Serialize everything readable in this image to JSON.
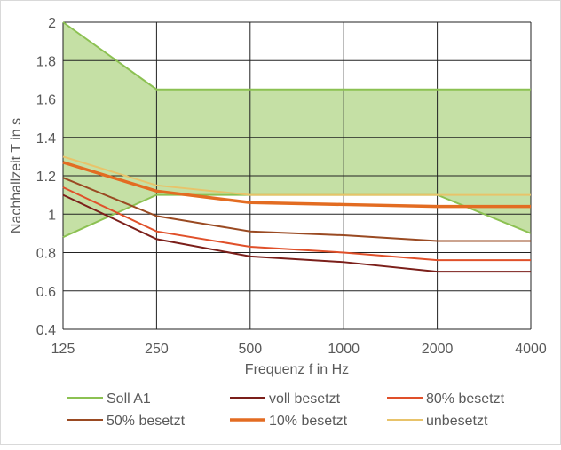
{
  "chart_data": {
    "type": "line",
    "title": "",
    "xlabel": "Frequenz f in Hz",
    "ylabel": "Nachhallzeit T in s",
    "categories": [
      "125",
      "250",
      "500",
      "1000",
      "2000",
      "4000"
    ],
    "ylim": [
      0.4,
      2
    ],
    "yticks": [
      "0.4",
      "0.6",
      "0.8",
      "1",
      "1.2",
      "1.4",
      "1.6",
      "1.8",
      "2"
    ],
    "grid": true,
    "legend_position": "bottom",
    "band": {
      "name": "Soll A1",
      "upper": [
        2,
        1.65,
        1.65,
        1.65,
        1.65,
        1.65
      ],
      "lower": [
        0.88,
        1.1,
        1.1,
        1.1,
        1.1,
        0.9
      ],
      "color": "#8cc152",
      "fill": "#c5e0a5"
    },
    "series": [
      {
        "name": "voll besetzt",
        "values": [
          1.1,
          0.87,
          0.78,
          0.75,
          0.7,
          0.7
        ],
        "color": "#7b1f1a",
        "width": 2
      },
      {
        "name": "80% besetzt",
        "values": [
          1.14,
          0.91,
          0.83,
          0.8,
          0.76,
          0.76
        ],
        "color": "#e0502a",
        "width": 2
      },
      {
        "name": "50% besetzt",
        "values": [
          1.19,
          0.99,
          0.91,
          0.89,
          0.86,
          0.86
        ],
        "color": "#9a4a22",
        "width": 2
      },
      {
        "name": "10% besetzt",
        "values": [
          1.27,
          1.12,
          1.06,
          1.05,
          1.04,
          1.04
        ],
        "color": "#e36c22",
        "width": 3.5
      },
      {
        "name": "unbesetzt",
        "values": [
          1.3,
          1.15,
          1.1,
          1.1,
          1.1,
          1.1
        ],
        "color": "#e8c36a",
        "width": 2
      }
    ]
  }
}
